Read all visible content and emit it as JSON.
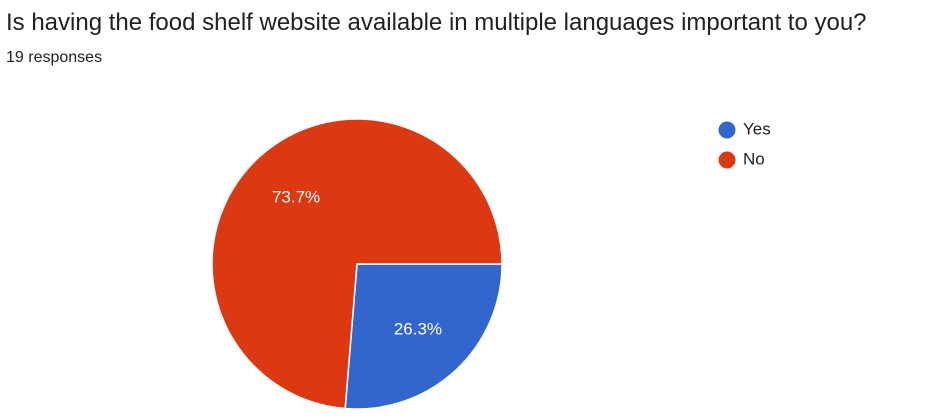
{
  "title": "Is having the food shelf website available in multiple languages important to you?",
  "subtitle": "19 responses",
  "chart_data": {
    "type": "pie",
    "title": "Is having the food shelf website available in multiple languages important to you?",
    "response_count": 19,
    "slices": [
      {
        "name": "Yes",
        "value": 26.3,
        "label": "26.3%",
        "color": "#3366cc"
      },
      {
        "name": "No",
        "value": 73.7,
        "label": "73.7%",
        "color": "#dc3912"
      }
    ],
    "legend_position": "right"
  }
}
